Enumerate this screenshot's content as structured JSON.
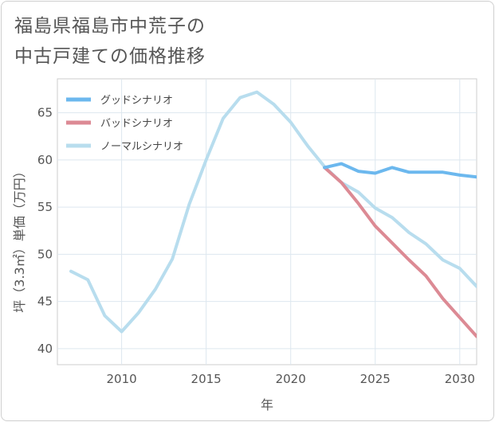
{
  "chart_data": {
    "type": "line",
    "title_lines": [
      "福島県福島市中荒子の",
      "中古戸建ての価格推移"
    ],
    "xlabel": "年",
    "ylabel": "坪（3.3㎡）単価（万円）",
    "xlim": [
      2006.2,
      2031
    ],
    "ylim": [
      38.3,
      68.6
    ],
    "x_ticks": [
      2010,
      2015,
      2020,
      2025,
      2030
    ],
    "y_ticks": [
      40,
      45,
      50,
      55,
      60,
      65
    ],
    "legend_position": "top-left",
    "grid": true,
    "series": [
      {
        "name": "グッドシナリオ",
        "color": "#6cb8ee",
        "points": [
          [
            2022,
            59.2
          ],
          [
            2023,
            59.6
          ],
          [
            2024,
            58.8
          ],
          [
            2025,
            58.6
          ],
          [
            2026,
            59.2
          ],
          [
            2027,
            58.7
          ],
          [
            2028,
            58.7
          ],
          [
            2029,
            58.7
          ],
          [
            2030,
            58.4
          ],
          [
            2031,
            58.2
          ]
        ]
      },
      {
        "name": "バッドシナリオ",
        "color": "#dc8a94",
        "points": [
          [
            2022,
            59.2
          ],
          [
            2023,
            57.6
          ],
          [
            2024,
            55.4
          ],
          [
            2025,
            53.0
          ],
          [
            2026,
            51.2
          ],
          [
            2027,
            49.4
          ],
          [
            2028,
            47.7
          ],
          [
            2029,
            45.3
          ],
          [
            2030,
            43.3
          ],
          [
            2031,
            41.3
          ]
        ]
      },
      {
        "name": "ノーマルシナリオ",
        "color": "#b8ddee",
        "points": [
          [
            2007,
            48.2
          ],
          [
            2008,
            47.3
          ],
          [
            2009,
            43.5
          ],
          [
            2010,
            41.8
          ],
          [
            2011,
            43.8
          ],
          [
            2012,
            46.3
          ],
          [
            2013,
            49.5
          ],
          [
            2014,
            55.3
          ],
          [
            2015,
            60.0
          ],
          [
            2016,
            64.4
          ],
          [
            2017,
            66.6
          ],
          [
            2018,
            67.2
          ],
          [
            2019,
            65.9
          ],
          [
            2020,
            64.0
          ],
          [
            2021,
            61.5
          ],
          [
            2022,
            59.3
          ],
          [
            2023,
            57.6
          ],
          [
            2024,
            56.6
          ],
          [
            2025,
            54.9
          ],
          [
            2026,
            53.9
          ],
          [
            2027,
            52.3
          ],
          [
            2028,
            51.1
          ],
          [
            2029,
            49.4
          ],
          [
            2030,
            48.5
          ],
          [
            2031,
            46.6
          ]
        ]
      }
    ]
  }
}
